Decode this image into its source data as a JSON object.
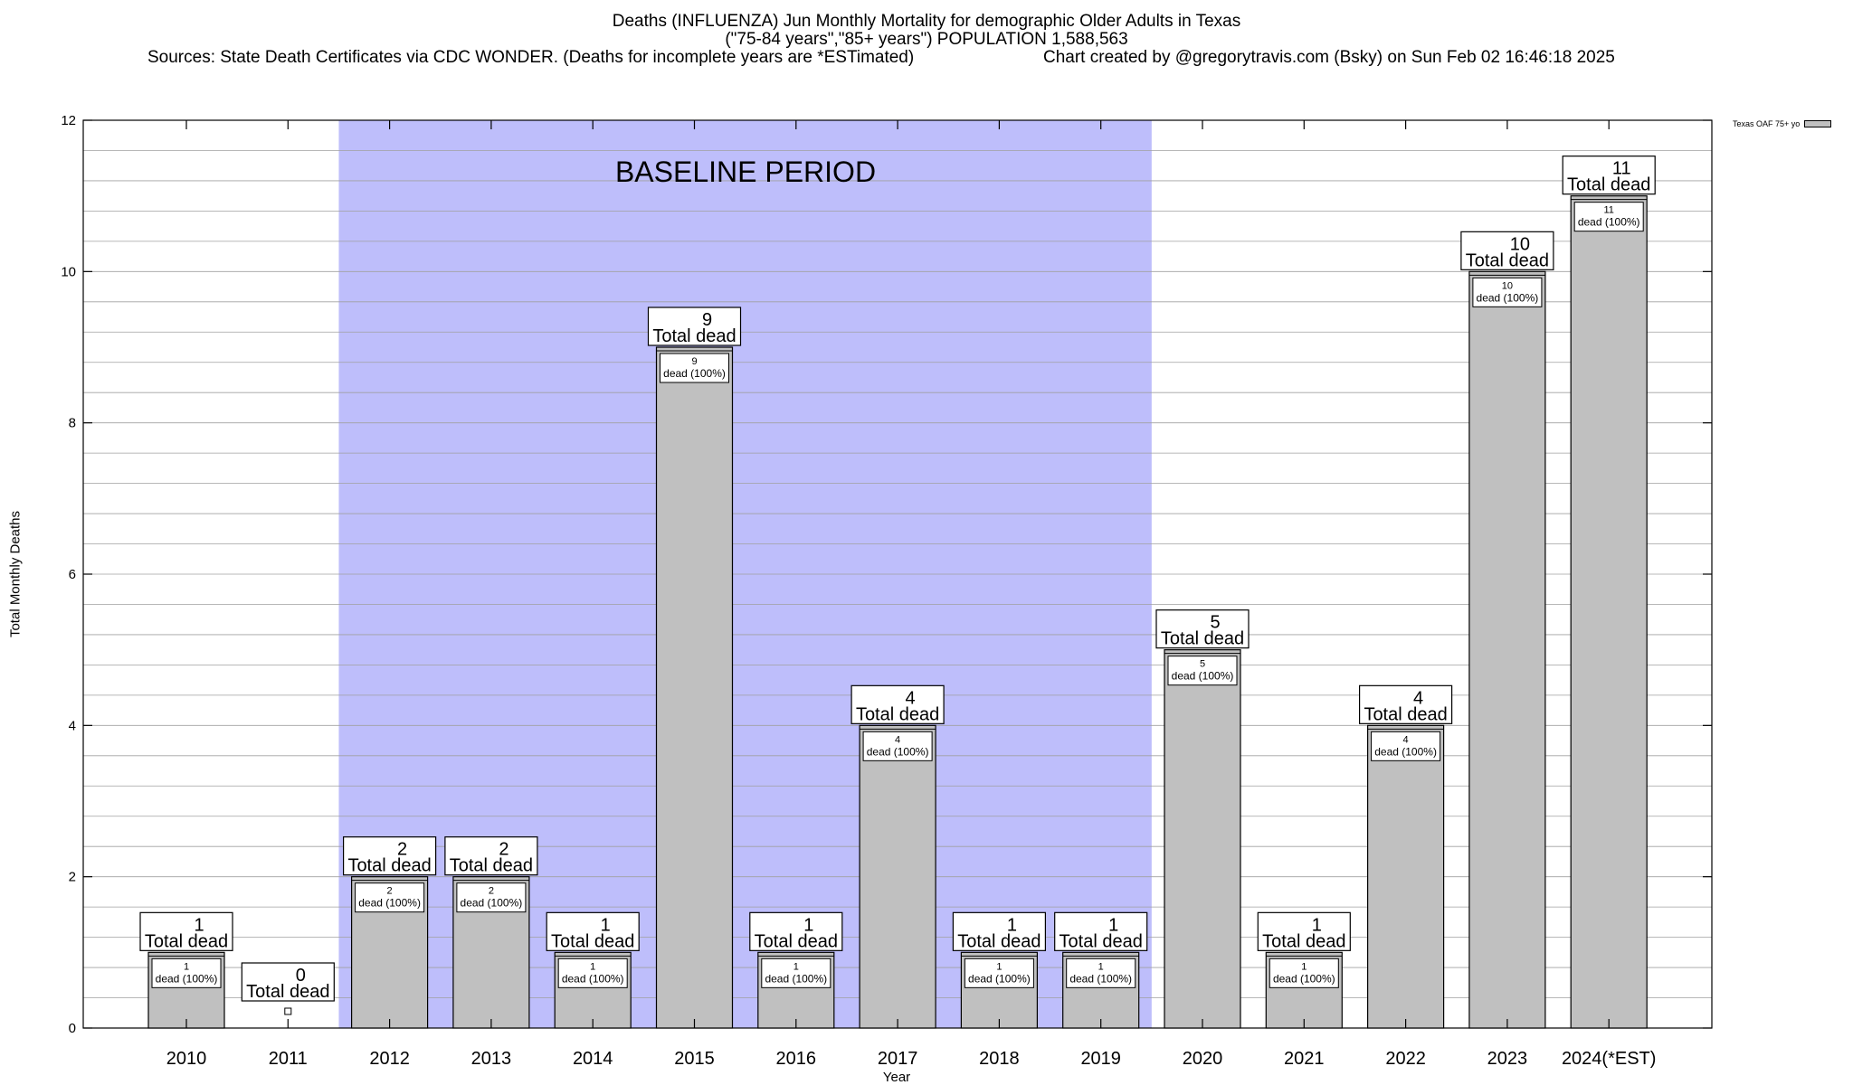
{
  "header": {
    "title": "Deaths (INFLUENZA) Jun Monthly Mortality for demographic Older Adults in Texas",
    "subtitle": "(\"75-84 years\",\"85+ years\") POPULATION 1,588,563",
    "sources": "Sources: State Death Certificates via CDC WONDER. (Deaths for incomplete years are *ESTimated)",
    "credit": "Chart created by @gregorytravis.com (Bsky) on Sun Feb 02 16:46:18 2025"
  },
  "annotations": {
    "baseline_label": "BASELINE PERIOD",
    "total_suffix": "Total dead",
    "inner_suffix": "dead (100%)"
  },
  "chart_data": {
    "type": "bar",
    "title": "Deaths (INFLUENZA) Jun Monthly Mortality for demographic Older Adults in Texas",
    "xlabel": "Year",
    "ylabel": "Total Monthly Deaths",
    "categories": [
      "2010",
      "2011",
      "2012",
      "2013",
      "2014",
      "2015",
      "2016",
      "2017",
      "2018",
      "2019",
      "2020",
      "2021",
      "2022",
      "2023",
      "2024(*EST)"
    ],
    "series": [
      {
        "name": "Texas OAF 75+ yo",
        "values": [
          1,
          0,
          2,
          2,
          1,
          9,
          1,
          4,
          1,
          1,
          5,
          1,
          4,
          10,
          11
        ]
      }
    ],
    "ylim": [
      0,
      12
    ],
    "yticks": [
      0,
      2,
      4,
      6,
      8,
      10,
      12
    ],
    "baseline_period": [
      "2012",
      "2019"
    ],
    "grid": true,
    "legend_position": "top-right",
    "colors": {
      "bar": "#c0c0c0",
      "baseline": "#bebefb",
      "grid": "#a0a0a0"
    }
  }
}
